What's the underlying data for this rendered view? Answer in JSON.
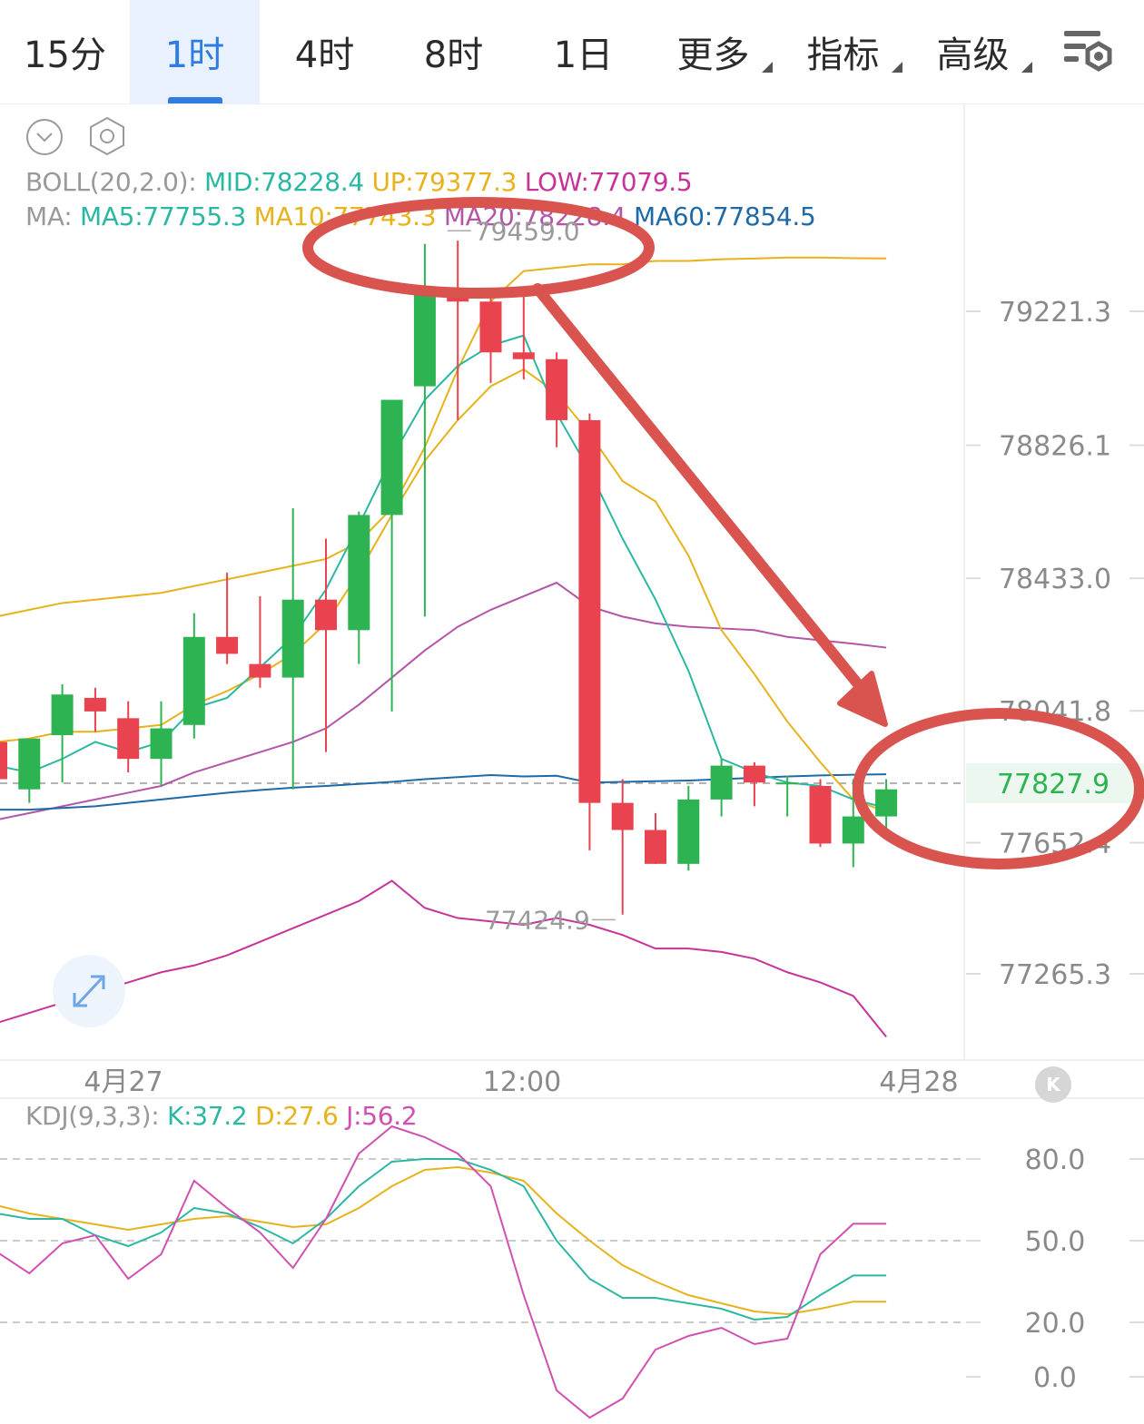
{
  "tabs": [
    {
      "label": "15分",
      "active": false,
      "has_menu": false
    },
    {
      "label": "1时",
      "active": true,
      "has_menu": false
    },
    {
      "label": "4时",
      "active": false,
      "has_menu": false
    },
    {
      "label": "8时",
      "active": false,
      "has_menu": false
    },
    {
      "label": "1日",
      "active": false,
      "has_menu": false
    },
    {
      "label": "更多",
      "active": false,
      "has_menu": true
    },
    {
      "label": "指标",
      "active": false,
      "has_menu": true
    },
    {
      "label": "高级",
      "active": false,
      "has_menu": true
    }
  ],
  "legend": {
    "boll": {
      "name": "BOLL(20,2.0):",
      "mid": "MID:78228.4",
      "up": "UP:79377.3",
      "low": "LOW:77079.5"
    },
    "ma": {
      "name": "MA:",
      "ma5": "MA5:77755.3",
      "ma10": "MA10:77743.3",
      "ma20": "MA20:78228.4",
      "ma60": "MA60:77854.5"
    },
    "kdj": {
      "name": "KDJ(9,3,3):",
      "k": "K:37.2",
      "d": "D:27.6",
      "j": "J:56.2"
    }
  },
  "colors": {
    "up": "#2db352",
    "down": "#e8434f",
    "ma5": "#2bb8a2",
    "ma10": "#e8b21c",
    "ma60": "#1f6aa6",
    "boll_up": "#e8b21c",
    "boll_mid": "#b455a8",
    "boll_low": "#c8339a",
    "kdj_k": "#2bb8a2",
    "kdj_d": "#e8b21c",
    "kdj_j": "#d24fb2",
    "annotation": "#d9534f",
    "current_price": "#2db352"
  },
  "chart_data": [
    {
      "type": "candlestick",
      "price_ylim": [
        77050,
        79700
      ],
      "y_ticks": [
        "79221.3",
        "78826.1",
        "78433.0",
        "78041.8",
        "77652.4",
        "77265.3"
      ],
      "x_ticks": [
        "4月27",
        "12:00",
        "4月28"
      ],
      "current_price": "77827.9",
      "high_marker": "79459.0",
      "low_marker": "77424.9",
      "candles": [
        {
          "o": 77950,
          "h": 78020,
          "l": 77800,
          "c": 77840
        },
        {
          "o": 77810,
          "h": 77960,
          "l": 77770,
          "c": 77960
        },
        {
          "o": 77970,
          "h": 78120,
          "l": 77830,
          "c": 78090
        },
        {
          "o": 78080,
          "h": 78110,
          "l": 77980,
          "c": 78040
        },
        {
          "o": 78020,
          "h": 78070,
          "l": 77860,
          "c": 77900
        },
        {
          "o": 77900,
          "h": 78070,
          "l": 77820,
          "c": 77990
        },
        {
          "o": 78000,
          "h": 78330,
          "l": 77960,
          "c": 78260
        },
        {
          "o": 78260,
          "h": 78450,
          "l": 78180,
          "c": 78210
        },
        {
          "o": 78180,
          "h": 78380,
          "l": 78110,
          "c": 78140
        },
        {
          "o": 78140,
          "h": 78640,
          "l": 77810,
          "c": 78370
        },
        {
          "o": 78370,
          "h": 78550,
          "l": 77920,
          "c": 78280
        },
        {
          "o": 78280,
          "h": 78630,
          "l": 78180,
          "c": 78620
        },
        {
          "o": 78620,
          "h": 78950,
          "l": 78040,
          "c": 78960
        },
        {
          "o": 79000,
          "h": 79420,
          "l": 78320,
          "c": 79280
        },
        {
          "o": 79280,
          "h": 79430,
          "l": 78900,
          "c": 79250
        },
        {
          "o": 79250,
          "h": 79290,
          "l": 79010,
          "c": 79100
        },
        {
          "o": 79100,
          "h": 79280,
          "l": 79020,
          "c": 79080
        },
        {
          "o": 79080,
          "h": 79100,
          "l": 78820,
          "c": 78900
        },
        {
          "o": 78900,
          "h": 78920,
          "l": 77630,
          "c": 77770
        },
        {
          "o": 77770,
          "h": 77840,
          "l": 77440,
          "c": 77690
        },
        {
          "o": 77690,
          "h": 77740,
          "l": 77590,
          "c": 77590
        },
        {
          "o": 77590,
          "h": 77820,
          "l": 77570,
          "c": 77780
        },
        {
          "o": 77780,
          "h": 77900,
          "l": 77730,
          "c": 77880
        },
        {
          "o": 77880,
          "h": 77890,
          "l": 77760,
          "c": 77830
        },
        {
          "o": 77830,
          "h": 77850,
          "l": 77730,
          "c": 77830
        },
        {
          "o": 77820,
          "h": 77840,
          "l": 77640,
          "c": 77650
        },
        {
          "o": 77650,
          "h": 77840,
          "l": 77580,
          "c": 77730
        },
        {
          "o": 77730,
          "h": 77840,
          "l": 77680,
          "c": 77810
        }
      ],
      "ma5": [
        77880,
        77860,
        77900,
        77950,
        77920,
        77950,
        78050,
        78080,
        78170,
        78260,
        78400,
        78590,
        78790,
        78960,
        79060,
        79120,
        79150,
        78920,
        78750,
        78550,
        78370,
        78160,
        77900,
        77860,
        77830,
        77820,
        77780,
        77755.3
      ],
      "ma10": [
        77950,
        77960,
        77980,
        77980,
        77990,
        78000,
        78060,
        78100,
        78150,
        78210,
        78300,
        78450,
        78620,
        78780,
        78900,
        79000,
        79050,
        78980,
        78860,
        78720,
        78660,
        78500,
        78280,
        78150,
        78010,
        77890,
        77780,
        77743.3
      ],
      "boll_up": [
        78320,
        78340,
        78360,
        78370,
        78380,
        78390,
        78410,
        78430,
        78450,
        78470,
        78490,
        78540,
        78640,
        78820,
        79050,
        79250,
        79340,
        79350,
        79360,
        79360,
        79370,
        79370,
        79375,
        79377,
        79380,
        79380,
        79378,
        79377.3
      ],
      "boll_mid": [
        77720,
        77740,
        77760,
        77780,
        77800,
        77820,
        77860,
        77890,
        77920,
        77950,
        77990,
        78060,
        78140,
        78220,
        78290,
        78340,
        78380,
        78420,
        78350,
        78320,
        78300,
        78290,
        78285,
        78280,
        78260,
        78250,
        78240,
        78228.4
      ],
      "boll_low": [
        77120,
        77150,
        77180,
        77210,
        77240,
        77270,
        77290,
        77320,
        77360,
        77400,
        77440,
        77480,
        77540,
        77460,
        77430,
        77420,
        77410,
        77430,
        77410,
        77380,
        77340,
        77340,
        77330,
        77310,
        77270,
        77240,
        77200,
        77079.5
      ],
      "ma60_pts": [
        [
          0,
          77750
        ],
        [
          27.5,
          77854.5
        ]
      ],
      "ma60": [
        77750,
        77750,
        77755,
        77760,
        77770,
        77780,
        77790,
        77800,
        77808,
        77815,
        77820,
        77826,
        77832,
        77840,
        77846,
        77852,
        77848,
        77850,
        77830,
        77832,
        77834,
        77836,
        77840,
        77844,
        77848,
        77851,
        77853,
        77854.5
      ]
    },
    {
      "type": "line",
      "title": "KDJ(9,3,3)",
      "y_ticks": [
        "80.0",
        "50.0",
        "20.0",
        "0.0"
      ],
      "ylim": [
        -10,
        100
      ],
      "k": [
        60,
        58,
        58,
        52,
        48,
        53,
        62,
        60,
        55,
        49,
        58,
        70,
        79,
        80,
        80,
        76,
        70,
        50,
        36,
        29,
        29,
        27,
        25,
        21,
        22,
        30,
        37.2,
        37.2
      ],
      "d": [
        63,
        60,
        58,
        56,
        54,
        56,
        58,
        59,
        57,
        55,
        56,
        62,
        70,
        76,
        77,
        75,
        72,
        60,
        50,
        41,
        35,
        30,
        27,
        24,
        23,
        25,
        27.6,
        27.6
      ],
      "j": [
        46,
        38,
        49,
        52,
        36,
        45,
        72,
        62,
        53,
        40,
        58,
        82,
        92,
        88,
        82,
        70,
        30,
        -5,
        -15,
        -8,
        10,
        15,
        18,
        12,
        14,
        45,
        56.2,
        56.2
      ]
    }
  ]
}
